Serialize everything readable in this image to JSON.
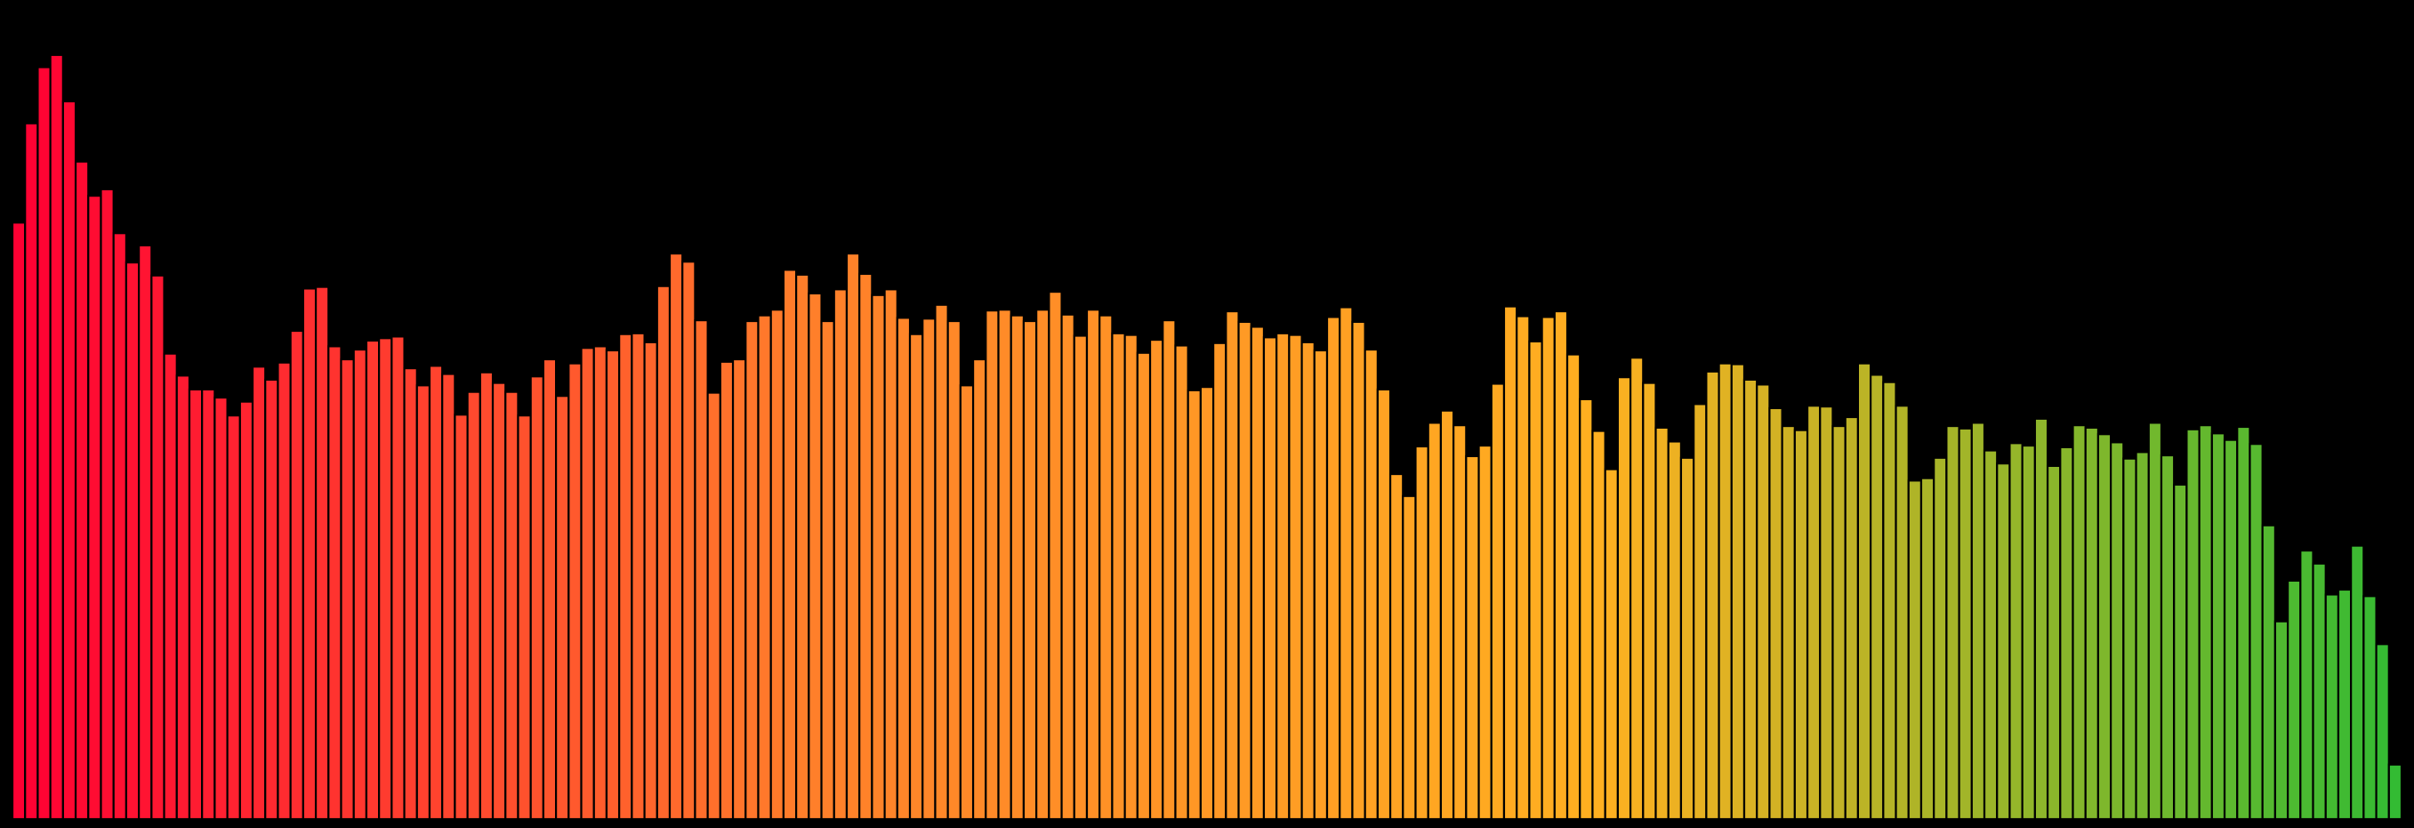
{
  "chart_data": {
    "type": "bar",
    "title": "",
    "xlabel": "",
    "ylabel": "",
    "ylim": [
      0,
      100
    ],
    "grid": false,
    "legend": "none",
    "background": "#000000",
    "bar_edge_color": "#000000",
    "colors": [
      "#ff0033",
      "#ff7f2a",
      "#ffb020",
      "#33bb33"
    ],
    "values": [
      73.3,
      85.5,
      92.4,
      93.9,
      88.2,
      80.8,
      76.6,
      77.4,
      72.0,
      68.4,
      70.5,
      66.8,
      57.2,
      54.5,
      52.8,
      52.8,
      51.8,
      49.6,
      51.3,
      55.6,
      54.0,
      56.1,
      60.0,
      65.2,
      65.4,
      58.1,
      56.5,
      57.7,
      58.8,
      59.1,
      59.3,
      55.4,
      53.3,
      55.7,
      54.7,
      49.7,
      52.5,
      54.9,
      53.6,
      52.5,
      49.6,
      54.4,
      56.5,
      52.0,
      56.0,
      57.9,
      58.1,
      57.6,
      59.6,
      59.7,
      58.6,
      65.5,
      69.5,
      68.5,
      61.3,
      52.4,
      56.2,
      56.5,
      61.2,
      61.9,
      62.6,
      67.5,
      66.9,
      64.6,
      61.2,
      65.1,
      69.5,
      67.0,
      64.4,
      65.1,
      61.6,
      59.6,
      61.5,
      63.2,
      61.2,
      53.3,
      56.5,
      62.5,
      62.6,
      61.9,
      61.2,
      62.6,
      64.8,
      62.0,
      59.4,
      62.6,
      61.9,
      59.7,
      59.5,
      57.3,
      58.9,
      61.3,
      58.2,
      52.7,
      53.1,
      58.5,
      62.4,
      61.1,
      60.5,
      59.2,
      59.7,
      59.5,
      58.6,
      57.6,
      61.7,
      62.9,
      61.1,
      57.7,
      52.8,
      42.4,
      39.7,
      45.8,
      48.7,
      50.2,
      48.4,
      44.6,
      45.9,
      53.5,
      63.0,
      61.8,
      58.7,
      61.7,
      62.4,
      57.1,
      51.6,
      47.7,
      43.0,
      54.3,
      56.7,
      53.6,
      48.1,
      46.4,
      44.4,
      51.0,
      55.0,
      56.0,
      55.9,
      54.0,
      53.4,
      50.5,
      48.3,
      47.8,
      50.8,
      50.7,
      48.3,
      49.4,
      56.0,
      54.6,
      53.7,
      50.8,
      41.6,
      41.9,
      44.4,
      48.3,
      48.0,
      48.7,
      45.3,
      43.7,
      46.2,
      45.9,
      49.2,
      43.4,
      45.7,
      48.4,
      48.1,
      47.3,
      46.3,
      44.3,
      45.1,
      48.7,
      44.7,
      41.1,
      47.9,
      48.4,
      47.4,
      46.6,
      48.2,
      46.1,
      36.1,
      24.3,
      29.3,
      33.0,
      31.4,
      27.6,
      28.2,
      33.6,
      27.4,
      21.5,
      6.7
    ]
  }
}
